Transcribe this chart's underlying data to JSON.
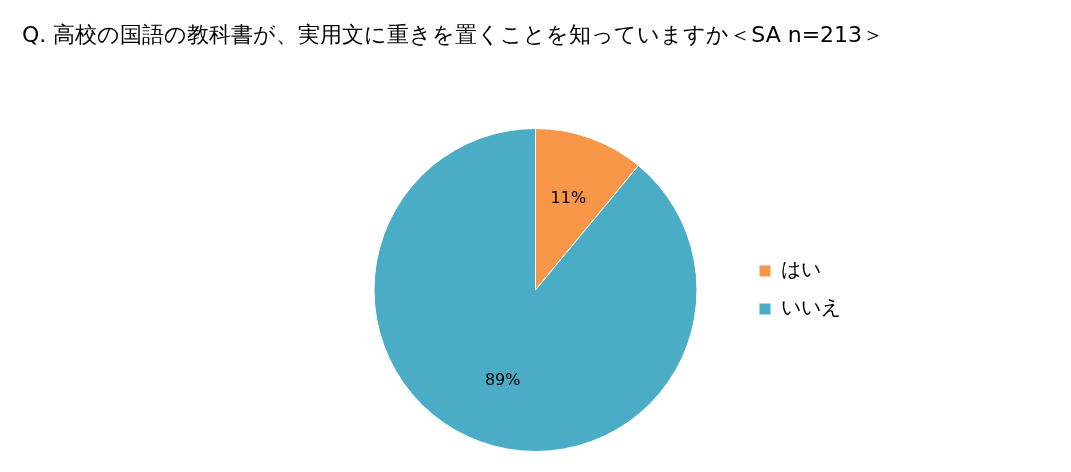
{
  "chart_data": {
    "type": "pie",
    "title": "Q. 高校の国語の教科書が、実用文に重きを置くことを知っていますか＜SA n=213＞",
    "categories": [
      "はい",
      "いいえ"
    ],
    "values": [
      11,
      89
    ],
    "colors": [
      "#f79646",
      "#4bacc6"
    ],
    "legend": "right",
    "value_labels": [
      "11%",
      "89%"
    ]
  }
}
